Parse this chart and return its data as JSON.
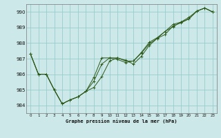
{
  "xlabel": "Graphe pression niveau de la mer (hPa)",
  "ylim": [
    983.5,
    990.5
  ],
  "xlim": [
    -0.5,
    23.5
  ],
  "yticks": [
    984,
    985,
    986,
    987,
    988,
    989,
    990
  ],
  "xticks": [
    0,
    1,
    2,
    3,
    4,
    5,
    6,
    7,
    8,
    9,
    10,
    11,
    12,
    13,
    14,
    15,
    16,
    17,
    18,
    19,
    20,
    21,
    22,
    23
  ],
  "background_color": "#cce8e8",
  "grid_color": "#99cccc",
  "line_color": "#2d5a1b",
  "series1": [
    987.3,
    986.0,
    986.0,
    985.0,
    984.1,
    984.35,
    984.55,
    984.9,
    985.15,
    985.85,
    986.85,
    987.05,
    986.9,
    986.65,
    987.15,
    987.85,
    988.3,
    988.55,
    989.1,
    989.3,
    989.55,
    990.05,
    990.25,
    990.0
  ],
  "series2": [
    987.3,
    986.0,
    986.0,
    985.0,
    984.1,
    984.35,
    984.55,
    984.9,
    985.55,
    986.65,
    987.05,
    987.05,
    986.85,
    986.85,
    987.35,
    987.95,
    988.3,
    988.75,
    989.05,
    989.35,
    989.65,
    990.05,
    990.25,
    990.0
  ],
  "series3": [
    987.3,
    986.0,
    986.0,
    985.0,
    984.1,
    984.35,
    984.55,
    984.9,
    985.8,
    987.05,
    987.05,
    986.95,
    986.75,
    986.85,
    987.4,
    988.05,
    988.35,
    988.75,
    989.2,
    989.35,
    989.55,
    990.05,
    990.25,
    990.0
  ]
}
